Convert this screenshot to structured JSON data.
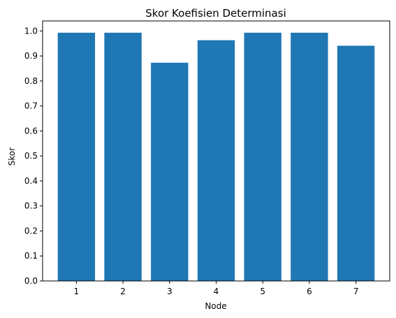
{
  "chart_data": {
    "type": "bar",
    "title": "Skor Koefisien Determinasi",
    "xlabel": "Node",
    "ylabel": "Skor",
    "categories": [
      "1",
      "2",
      "3",
      "4",
      "5",
      "6",
      "7"
    ],
    "values": [
      0.993,
      0.993,
      0.873,
      0.963,
      0.993,
      0.993,
      0.941
    ],
    "ylim": [
      0,
      1.04
    ],
    "yticks": [
      "0.0",
      "0.1",
      "0.2",
      "0.3",
      "0.4",
      "0.5",
      "0.6",
      "0.7",
      "0.8",
      "0.9",
      "1.0"
    ],
    "bar_color": "#1f77b4",
    "grid": false,
    "legend": false
  }
}
